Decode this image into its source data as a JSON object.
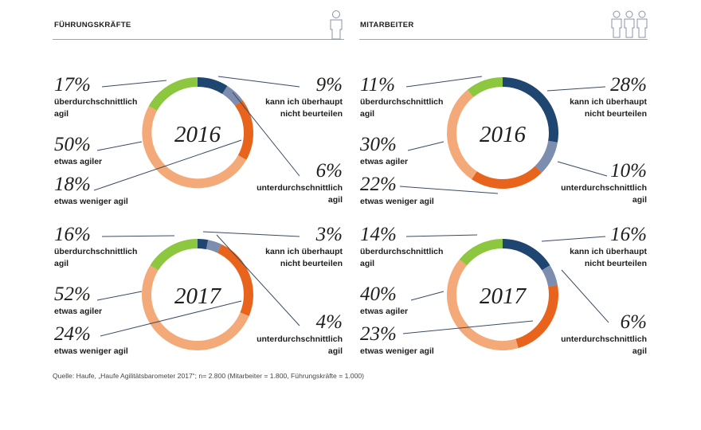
{
  "headers": {
    "left": "FÜHRUNGSKRÄFTE",
    "right": "MITARBEITER"
  },
  "colors": {
    "gruen": "#8dc63f",
    "dunkelblau": "#1f4670",
    "graublau": "#7c8db0",
    "orange": "#e8641d",
    "hellorange": "#f4aa78"
  },
  "icons": {
    "left": "person-icon",
    "right": "group-of-three-people-icon"
  },
  "chart_data": [
    {
      "type": "pie",
      "group": "Führungskräfte",
      "title": "2016",
      "slices": [
        {
          "label": "kann ich überhaupt nicht beurteilen",
          "value": 9,
          "color": "#1f4670"
        },
        {
          "label": "unterdurchschnittlich agil",
          "value": 6,
          "color": "#7c8db0"
        },
        {
          "label": "etwas weniger agil",
          "value": 18,
          "color": "#e8641d"
        },
        {
          "label": "etwas agiler",
          "value": 50,
          "color": "#f4aa78"
        },
        {
          "label": "überdurchschnittlich agil",
          "value": 17,
          "color": "#8dc63f"
        }
      ]
    },
    {
      "type": "pie",
      "group": "Mitarbeiter",
      "title": "2016",
      "slices": [
        {
          "label": "kann ich überhaupt nicht beurteilen",
          "value": 28,
          "color": "#1f4670"
        },
        {
          "label": "unterdurchschnittlich agil",
          "value": 10,
          "color": "#7c8db0"
        },
        {
          "label": "etwas weniger agil",
          "value": 22,
          "color": "#e8641d"
        },
        {
          "label": "etwas agiler",
          "value": 30,
          "color": "#f4aa78"
        },
        {
          "label": "überdurchschnittlich agil",
          "value": 11,
          "color": "#8dc63f"
        }
      ]
    },
    {
      "type": "pie",
      "group": "Führungskräfte",
      "title": "2017",
      "slices": [
        {
          "label": "kann ich überhaupt nicht beurteilen",
          "value": 3,
          "color": "#1f4670"
        },
        {
          "label": "unterdurchschnittlich agil",
          "value": 4,
          "color": "#7c8db0"
        },
        {
          "label": "etwas weniger agil",
          "value": 24,
          "color": "#e8641d"
        },
        {
          "label": "etwas agiler",
          "value": 52,
          "color": "#f4aa78"
        },
        {
          "label": "überdurchschnittlich agil",
          "value": 16,
          "color": "#8dc63f"
        }
      ]
    },
    {
      "type": "pie",
      "group": "Mitarbeiter",
      "title": "2017",
      "slices": [
        {
          "label": "kann ich überhaupt nicht beurteilen",
          "value": 16,
          "color": "#1f4670"
        },
        {
          "label": "unterdurchschnittlich agil",
          "value": 6,
          "color": "#7c8db0"
        },
        {
          "label": "etwas weniger agil",
          "value": 23,
          "color": "#e8641d"
        },
        {
          "label": "etwas agiler",
          "value": 40,
          "color": "#f4aa78"
        },
        {
          "label": "überdurchschnittlich agil",
          "value": 14,
          "color": "#8dc63f"
        }
      ]
    }
  ],
  "labels": [
    {
      "pct": "17%",
      "lines": [
        "überdurchschnittlich",
        "agil"
      ]
    },
    {
      "pct": "50%",
      "lines": [
        "etwas agiler"
      ]
    },
    {
      "pct": "18%",
      "lines": [
        "etwas weniger agil"
      ]
    },
    {
      "pct": "9%",
      "lines": [
        "kann ich überhaupt",
        "nicht beurteilen"
      ]
    },
    {
      "pct": "6%",
      "lines": [
        "unterdurchschnittlich",
        "agil"
      ]
    },
    {
      "pct": "11%",
      "lines": [
        "überdurchschnittlich",
        "agil"
      ]
    },
    {
      "pct": "30%",
      "lines": [
        "etwas agiler"
      ]
    },
    {
      "pct": "22%",
      "lines": [
        "etwas weniger agil"
      ]
    },
    {
      "pct": "28%",
      "lines": [
        "kann ich überhaupt",
        "nicht beurteilen"
      ]
    },
    {
      "pct": "10%",
      "lines": [
        "unterdurchschnittlich",
        "agil"
      ]
    },
    {
      "pct": "16%",
      "lines": [
        "überdurchschnittlich",
        "agil"
      ]
    },
    {
      "pct": "52%",
      "lines": [
        "etwas agiler"
      ]
    },
    {
      "pct": "24%",
      "lines": [
        "etwas weniger agil"
      ]
    },
    {
      "pct": "3%",
      "lines": [
        "kann ich überhaupt",
        "nicht beurteilen"
      ]
    },
    {
      "pct": "4%",
      "lines": [
        "unterdurchschnittlich",
        "agil"
      ]
    },
    {
      "pct": "14%",
      "lines": [
        "überdurchschnittlich",
        "agil"
      ]
    },
    {
      "pct": "40%",
      "lines": [
        "etwas agiler"
      ]
    },
    {
      "pct": "23%",
      "lines": [
        "etwas weniger agil"
      ]
    },
    {
      "pct": "16%",
      "lines": [
        "kann ich überhaupt",
        "nicht beurteilen"
      ]
    },
    {
      "pct": "6%",
      "lines": [
        "unterdurchschnittlich",
        "agil"
      ]
    }
  ],
  "source": "Quelle: Haufe, „Haufe Agilitätsbarometer 2017“; n= 2.800 (Mitarbeiter = 1.800, Führungskräfte = 1.000)"
}
